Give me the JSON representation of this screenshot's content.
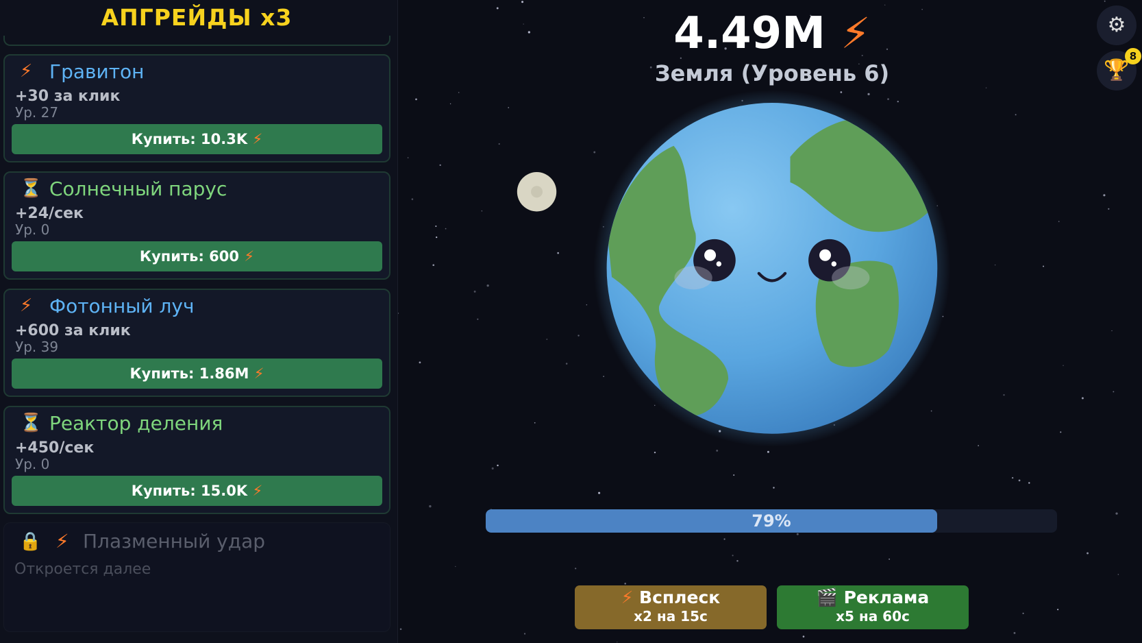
{
  "sidebar": {
    "title": "АПГРЕЙДЫ x3",
    "cards": [
      {
        "icon": "bolt-icon",
        "glyph": "⚡",
        "name": "Гравитон",
        "name_color": "#5eb3f5",
        "effect": "+30 за клик",
        "level": "Ур. 27",
        "buy": "Купить: 10.3K"
      },
      {
        "icon": "hourglass-icon",
        "glyph": "⏳",
        "name": "Солнечный парус",
        "name_color": "#7fd67d",
        "effect": "+24/сек",
        "level": "Ур. 0",
        "buy": "Купить: 600"
      },
      {
        "icon": "bolt-icon",
        "glyph": "⚡",
        "name": "Фотонный луч",
        "name_color": "#5eb3f5",
        "effect": "+600 за клик",
        "level": "Ур. 39",
        "buy": "Купить: 1.86M"
      },
      {
        "icon": "hourglass-icon",
        "glyph": "⏳",
        "name": "Реактор деления",
        "name_color": "#7fd67d",
        "effect": "+450/сек",
        "level": "Ур. 0",
        "buy": "Купить: 15.0K"
      }
    ],
    "locked": {
      "lock": "🔒",
      "bolt": "⚡",
      "name": "Плазменный удар",
      "subtitle": "Откроется далее"
    }
  },
  "header": {
    "score": "4.49M",
    "bolt": "⚡",
    "planet": "Земля  (Уровень 6)"
  },
  "progress": {
    "value": 0.79,
    "label": "79%"
  },
  "boosts": [
    {
      "icon": "⚡",
      "title": "Всплеск",
      "subtitle": "x2 на 15с",
      "color": "#86692a"
    },
    {
      "icon": "🎬",
      "title": "Реклама",
      "subtitle": "x5 на 60с",
      "color": "#2d7a33"
    }
  ],
  "controls": {
    "settings": "⚙",
    "trophy": "🏆",
    "trophy_badge": "8"
  },
  "colors": {
    "ocean": "#5aa6e0",
    "land": "#5f9e58",
    "accent": "#f7d21e",
    "buy": "#2f7a4e"
  }
}
